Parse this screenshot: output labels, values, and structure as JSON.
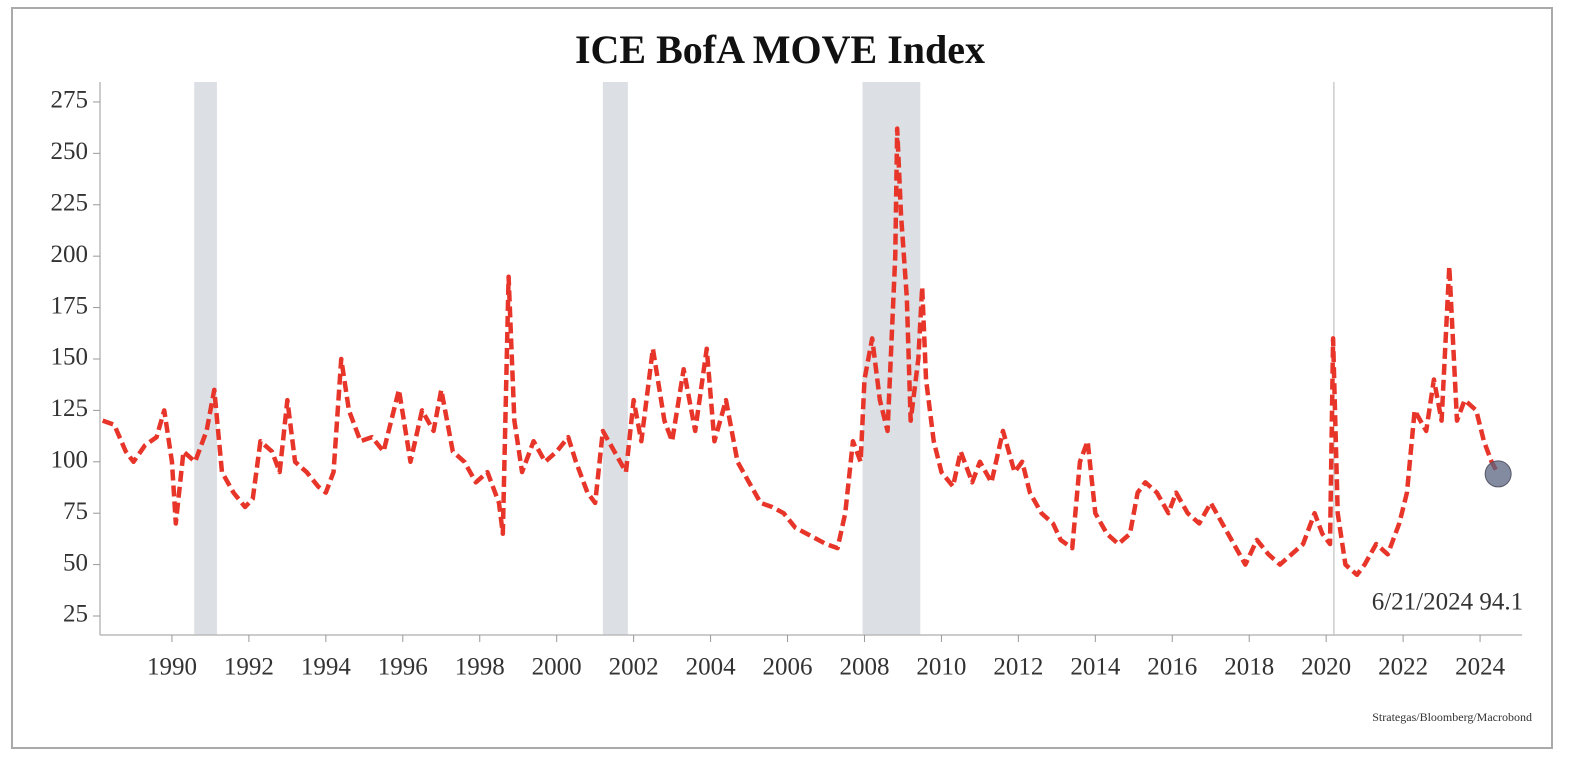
{
  "chart_data": {
    "type": "line",
    "title": "ICE BofA MOVE Index",
    "source": "Strategas/Bloomberg/Macrobond",
    "annotation": "6/21/2024 94.1",
    "color": "#e8352a",
    "x": [
      1988.2,
      1988.5,
      1988.8,
      1989.0,
      1989.3,
      1989.6,
      1989.8,
      1990.0,
      1990.1,
      1990.3,
      1990.6,
      1990.9,
      1991.1,
      1991.3,
      1991.6,
      1991.9,
      1992.1,
      1992.3,
      1992.6,
      1992.8,
      1993.0,
      1993.2,
      1993.5,
      1993.8,
      1994.0,
      1994.2,
      1994.4,
      1994.6,
      1994.9,
      1995.2,
      1995.5,
      1995.9,
      1996.2,
      1996.5,
      1996.8,
      1997.0,
      1997.3,
      1997.6,
      1997.9,
      1998.2,
      1998.5,
      1998.6,
      1998.75,
      1998.9,
      1999.1,
      1999.4,
      1999.7,
      2000.0,
      2000.3,
      2000.5,
      2000.8,
      2001.0,
      2001.2,
      2001.5,
      2001.8,
      2002.0,
      2002.2,
      2002.5,
      2002.8,
      2003.0,
      2003.3,
      2003.6,
      2003.9,
      2004.1,
      2004.4,
      2004.7,
      2005.0,
      2005.3,
      2005.6,
      2005.9,
      2006.2,
      2006.5,
      2006.8,
      2007.0,
      2007.3,
      2007.5,
      2007.7,
      2007.9,
      2008.0,
      2008.2,
      2008.4,
      2008.6,
      2008.8,
      2008.85,
      2008.95,
      2009.1,
      2009.2,
      2009.4,
      2009.5,
      2009.6,
      2009.8,
      2010.0,
      2010.3,
      2010.5,
      2010.8,
      2011.0,
      2011.3,
      2011.6,
      2011.9,
      2012.1,
      2012.3,
      2012.6,
      2012.9,
      2013.1,
      2013.4,
      2013.6,
      2013.8,
      2014.0,
      2014.3,
      2014.6,
      2014.9,
      2015.1,
      2015.3,
      2015.6,
      2015.9,
      2016.1,
      2016.4,
      2016.7,
      2017.0,
      2017.3,
      2017.6,
      2017.9,
      2018.2,
      2018.5,
      2018.8,
      2019.1,
      2019.4,
      2019.7,
      2019.9,
      2020.1,
      2020.18,
      2020.3,
      2020.5,
      2020.8,
      2021.0,
      2021.3,
      2021.6,
      2021.9,
      2022.1,
      2022.3,
      2022.6,
      2022.8,
      2023.0,
      2023.2,
      2023.4,
      2023.6,
      2023.9,
      2024.1,
      2024.3,
      2024.47
    ],
    "values": [
      120,
      118,
      105,
      100,
      108,
      112,
      125,
      100,
      70,
      105,
      100,
      115,
      135,
      95,
      85,
      78,
      82,
      110,
      105,
      95,
      130,
      100,
      95,
      88,
      85,
      95,
      150,
      125,
      110,
      112,
      105,
      135,
      100,
      125,
      115,
      135,
      105,
      100,
      90,
      95,
      80,
      65,
      190,
      120,
      95,
      110,
      100,
      105,
      112,
      100,
      85,
      80,
      115,
      105,
      95,
      130,
      110,
      155,
      120,
      110,
      145,
      115,
      155,
      110,
      130,
      100,
      90,
      80,
      78,
      75,
      68,
      65,
      62,
      60,
      58,
      75,
      110,
      100,
      140,
      160,
      130,
      115,
      200,
      262,
      220,
      180,
      120,
      150,
      185,
      140,
      110,
      95,
      88,
      105,
      90,
      100,
      90,
      115,
      95,
      100,
      85,
      75,
      70,
      62,
      58,
      100,
      110,
      75,
      65,
      60,
      65,
      85,
      90,
      85,
      75,
      85,
      75,
      70,
      80,
      70,
      60,
      50,
      62,
      55,
      50,
      55,
      60,
      75,
      65,
      60,
      160,
      75,
      50,
      45,
      50,
      60,
      55,
      70,
      85,
      125,
      115,
      140,
      120,
      195,
      120,
      130,
      125,
      110,
      100,
      94.1
    ],
    "shaded_periods": [
      [
        1990.58,
        1991.17
      ],
      [
        2001.2,
        2001.85
      ],
      [
        2007.95,
        2009.45
      ]
    ],
    "reference_line_x": 2020.2,
    "xlim": [
      1988.13,
      2025.09
    ],
    "xticks": [
      1990,
      1992,
      1994,
      1996,
      1998,
      2000,
      2002,
      2004,
      2006,
      2008,
      2010,
      2012,
      2014,
      2016,
      2018,
      2020,
      2022,
      2024
    ],
    "ylim": [
      15.76,
      284.7
    ],
    "yticks": [
      25,
      50,
      75,
      100,
      125,
      150,
      175,
      200,
      225,
      250,
      275
    ]
  }
}
